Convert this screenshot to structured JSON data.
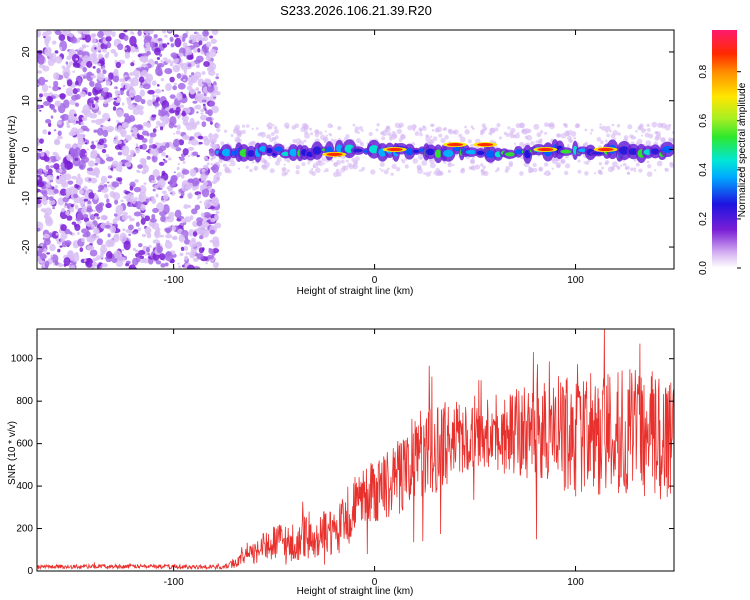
{
  "title": "S233.2026.106.21.39.R20",
  "colors": {
    "snr_line": "#e8302c",
    "axis": "#000000",
    "scatter_purple": "#7a1fd6"
  },
  "chart_data": [
    {
      "type": "heatmap",
      "xlabel": "Height of straight line (km)",
      "ylabel": "Frequency (Hz)",
      "xlim": [
        -168,
        149
      ],
      "ylim": [
        -24.5,
        24.5
      ],
      "x_ticks": [
        -100,
        0,
        100
      ],
      "y_ticks": [
        -20,
        -10,
        0,
        10,
        20
      ],
      "colorbar": {
        "label": "Normalized spectral amplitude",
        "range": [
          0.0,
          0.97
        ],
        "ticks": [
          0.0,
          0.2,
          0.4,
          0.6,
          0.8
        ],
        "colormap": "rainbow (purple to red)"
      },
      "description_regions": [
        {
          "x_range": [
            -168,
            -78
          ],
          "content": "diffuse noise over full frequency band"
        },
        {
          "x_range": [
            -78,
            149
          ],
          "content": "narrow signal band centered near 0 Hz, peak amplitude near x=40 and x=55"
        }
      ],
      "grid": false
    },
    {
      "type": "line",
      "xlabel": "Height of straight line (km)",
      "ylabel": "SNR (10 * v/v)",
      "xlim": [
        -168,
        149
      ],
      "ylim": [
        0,
        1140
      ],
      "x_ticks": [
        -100,
        0,
        100
      ],
      "y_ticks": [
        0,
        200,
        400,
        600,
        800,
        1000
      ],
      "grid": false,
      "series": [
        {
          "color": "#e8302c",
          "envelope_x": [
            -168,
            -120,
            -90,
            -75,
            -65,
            -55,
            -45,
            -40,
            -35,
            -30,
            -25,
            -20,
            -15,
            -12,
            -10,
            -5,
            0,
            10,
            20,
            30,
            40,
            50,
            60,
            70,
            80,
            90,
            100,
            110,
            120,
            130,
            140,
            149
          ],
          "envelope_mean": [
            20,
            22,
            20,
            18,
            60,
            110,
            150,
            90,
            170,
            120,
            190,
            160,
            240,
            180,
            320,
            360,
            380,
            420,
            540,
            580,
            620,
            640,
            620,
            640,
            650,
            660,
            630,
            640,
            650,
            640,
            630,
            650
          ],
          "envelope_spread": [
            10,
            10,
            10,
            10,
            40,
            70,
            90,
            60,
            100,
            80,
            100,
            110,
            120,
            100,
            130,
            140,
            150,
            180,
            200,
            220,
            180,
            150,
            140,
            220,
            250,
            260,
            280,
            300,
            300,
            320,
            330,
            340
          ]
        }
      ]
    }
  ]
}
